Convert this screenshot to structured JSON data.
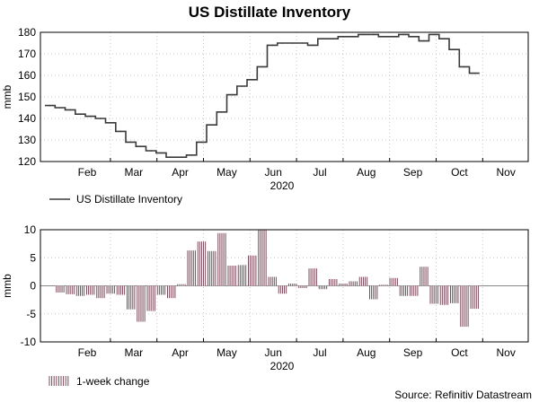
{
  "title": "US Distillate Inventory",
  "source": "Source: Refinitiv Datastream",
  "colors": {
    "line": "#3a3a3a",
    "bar": "#7a4a5a",
    "grid": "#c8c8c8",
    "zero": "#888888"
  },
  "chart_data": [
    {
      "type": "line",
      "ylabel": "mmb",
      "xlabel": "2020",
      "ylim": [
        120,
        180
      ],
      "yticks": [
        120,
        130,
        140,
        150,
        160,
        170,
        180
      ],
      "months": [
        "Feb",
        "Mar",
        "Apr",
        "May",
        "Jun",
        "Jul",
        "Aug",
        "Sep",
        "Oct",
        "Nov"
      ],
      "legend": "US Distillate Inventory",
      "series": [
        {
          "name": "US Distillate Inventory",
          "week": [
            0,
            1,
            2,
            3,
            4,
            5,
            6,
            7,
            8,
            9,
            10,
            11,
            12,
            13,
            14,
            15,
            16,
            17,
            18,
            19,
            20,
            21,
            22,
            23,
            24,
            25,
            26,
            27,
            28,
            29,
            30,
            31,
            32,
            33,
            34,
            35,
            36,
            37,
            38,
            39,
            40,
            41,
            42
          ],
          "values": [
            146,
            145,
            144,
            142,
            141,
            140,
            138,
            134,
            129,
            127,
            125,
            124,
            122,
            122,
            123,
            129,
            137,
            143,
            151,
            155,
            158,
            164,
            174,
            175,
            175,
            175,
            174,
            177,
            177,
            178,
            178,
            179,
            179,
            178,
            178,
            179,
            178,
            176,
            179,
            177,
            172,
            164,
            161
          ]
        }
      ]
    },
    {
      "type": "bar",
      "ylabel": "mmb",
      "xlabel": "2020",
      "ylim": [
        -10,
        10
      ],
      "yticks": [
        -10,
        -5,
        0,
        5,
        10
      ],
      "months": [
        "Feb",
        "Mar",
        "Apr",
        "May",
        "Jun",
        "Jul",
        "Aug",
        "Sep",
        "Oct",
        "Nov"
      ],
      "legend": "1-week change",
      "series": [
        {
          "name": "1-week change",
          "week": [
            1,
            2,
            3,
            4,
            5,
            6,
            7,
            8,
            9,
            10,
            11,
            12,
            13,
            14,
            15,
            16,
            17,
            18,
            19,
            20,
            21,
            22,
            23,
            24,
            25,
            26,
            27,
            28,
            29,
            30,
            31,
            32,
            33,
            34,
            35,
            36,
            37,
            38,
            39,
            40,
            41,
            42
          ],
          "values": [
            -1.2,
            -1.5,
            -1.8,
            -1.6,
            -2.2,
            -1.4,
            -1.6,
            -4.2,
            -6.4,
            -4.5,
            -1.6,
            -2.2,
            0.3,
            6.3,
            7.9,
            6.2,
            9.4,
            3.6,
            3.7,
            5.4,
            9.9,
            1.6,
            -1.4,
            0.4,
            -0.4,
            3.1,
            -0.6,
            1.2,
            0.4,
            0.8,
            1.6,
            -2.4,
            0.2,
            1.4,
            -1.8,
            -1.8,
            3.4,
            -3.2,
            -3.4,
            -3.1,
            -7.3,
            -4.1
          ]
        }
      ]
    }
  ]
}
